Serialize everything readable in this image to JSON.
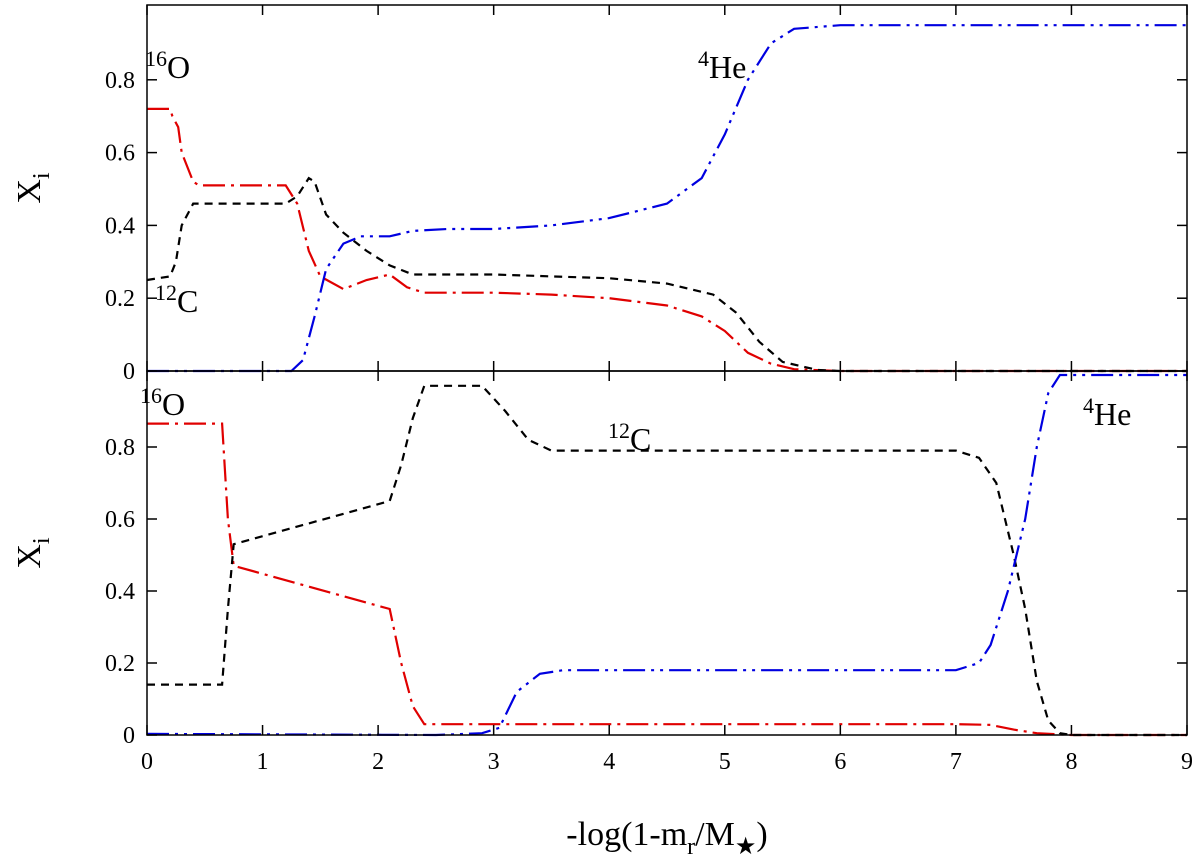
{
  "chart_data": [
    {
      "type": "line",
      "ylabel": [
        "X",
        "i"
      ],
      "xlim": [
        0,
        9
      ],
      "ylim": [
        0,
        1.0
      ],
      "xticks": [
        0,
        1,
        2,
        3,
        4,
        5,
        6,
        7,
        8,
        9
      ],
      "yticks": [
        0,
        0.2,
        0.4,
        0.6,
        0.8
      ],
      "annotations": [
        [
          "16",
          "O"
        ],
        [
          "12",
          "C"
        ],
        [
          "4",
          "He"
        ]
      ],
      "series": [
        {
          "color": "#e00000",
          "linestyle": "dashdot",
          "x": [
            0,
            0.2,
            0.22,
            0.27,
            0.3,
            0.4,
            0.45,
            1.2,
            1.3,
            1.4,
            1.5,
            1.7,
            1.9,
            2.1,
            2.25,
            2.4,
            3,
            3.5,
            4,
            4.5,
            4.8,
            5.0,
            5.2,
            5.4,
            5.6,
            6,
            9
          ],
          "values": [
            0.72,
            0.72,
            0.7,
            0.67,
            0.6,
            0.52,
            0.51,
            0.51,
            0.46,
            0.33,
            0.26,
            0.225,
            0.25,
            0.265,
            0.23,
            0.215,
            0.215,
            0.21,
            0.2,
            0.18,
            0.15,
            0.11,
            0.05,
            0.02,
            0.005,
            0,
            0
          ]
        },
        {
          "color": "#000000",
          "linestyle": "dash",
          "x": [
            0,
            0.2,
            0.25,
            0.3,
            0.4,
            1.2,
            1.3,
            1.4,
            1.45,
            1.55,
            1.7,
            1.9,
            2.1,
            2.3,
            3,
            3.5,
            4,
            4.5,
            4.9,
            5.1,
            5.3,
            5.5,
            5.8,
            6,
            9
          ],
          "values": [
            0.25,
            0.26,
            0.3,
            0.4,
            0.46,
            0.46,
            0.48,
            0.53,
            0.52,
            0.43,
            0.38,
            0.33,
            0.29,
            0.265,
            0.265,
            0.26,
            0.255,
            0.24,
            0.21,
            0.16,
            0.08,
            0.025,
            0.003,
            0,
            0
          ]
        },
        {
          "color": "#0000e0",
          "linestyle": "dashdotdot",
          "x": [
            0,
            1.25,
            1.35,
            1.45,
            1.55,
            1.7,
            1.85,
            2.1,
            2.3,
            2.6,
            3,
            3.5,
            4,
            4.5,
            4.8,
            5,
            5.2,
            5.4,
            5.6,
            6,
            9
          ],
          "values": [
            0,
            0,
            0.03,
            0.15,
            0.28,
            0.35,
            0.37,
            0.37,
            0.385,
            0.39,
            0.39,
            0.4,
            0.42,
            0.46,
            0.53,
            0.65,
            0.8,
            0.9,
            0.94,
            0.95,
            0.95
          ]
        }
      ]
    },
    {
      "type": "line",
      "ylabel": [
        "X",
        "i"
      ],
      "xlabel": [
        "-log(1-m",
        "r",
        "/M",
        "★",
        ")"
      ],
      "xlim": [
        0,
        9
      ],
      "ylim": [
        0,
        1.0
      ],
      "xticks": [
        0,
        1,
        2,
        3,
        4,
        5,
        6,
        7,
        8,
        9
      ],
      "yticks": [
        0,
        0.2,
        0.4,
        0.6,
        0.8
      ],
      "annotations": [
        [
          "16",
          "O"
        ],
        [
          "12",
          "C"
        ],
        [
          "4",
          "He"
        ]
      ],
      "series": [
        {
          "color": "#e00000",
          "linestyle": "dashdot",
          "x": [
            0,
            0.65,
            0.7,
            0.75,
            2.1,
            2.2,
            2.3,
            2.4,
            2.6,
            7,
            7.3,
            7.5,
            7.7,
            8,
            9
          ],
          "values": [
            0.865,
            0.865,
            0.6,
            0.47,
            0.35,
            0.2,
            0.08,
            0.03,
            0.03,
            0.03,
            0.028,
            0.015,
            0.005,
            0,
            0
          ]
        },
        {
          "color": "#000000",
          "linestyle": "dash",
          "x": [
            0,
            0.65,
            0.7,
            0.75,
            2.1,
            2.2,
            2.3,
            2.4,
            2.9,
            3.1,
            3.3,
            3.5,
            7,
            7.2,
            7.35,
            7.5,
            7.6,
            7.7,
            7.8,
            7.9,
            8,
            9
          ],
          "values": [
            0.14,
            0.14,
            0.35,
            0.53,
            0.65,
            0.75,
            0.88,
            0.97,
            0.97,
            0.9,
            0.82,
            0.79,
            0.79,
            0.77,
            0.7,
            0.5,
            0.35,
            0.15,
            0.04,
            0.005,
            0,
            0
          ]
        },
        {
          "color": "#0000e0",
          "linestyle": "dashdotdot",
          "x": [
            0,
            2.5,
            2.9,
            3.05,
            3.2,
            3.4,
            3.6,
            5,
            7,
            7.2,
            7.3,
            7.45,
            7.6,
            7.7,
            7.8,
            7.9,
            9
          ],
          "values": [
            0.003,
            0,
            0.005,
            0.02,
            0.12,
            0.17,
            0.18,
            0.18,
            0.18,
            0.2,
            0.25,
            0.4,
            0.6,
            0.8,
            0.95,
            1.0,
            1.0
          ]
        }
      ]
    }
  ]
}
